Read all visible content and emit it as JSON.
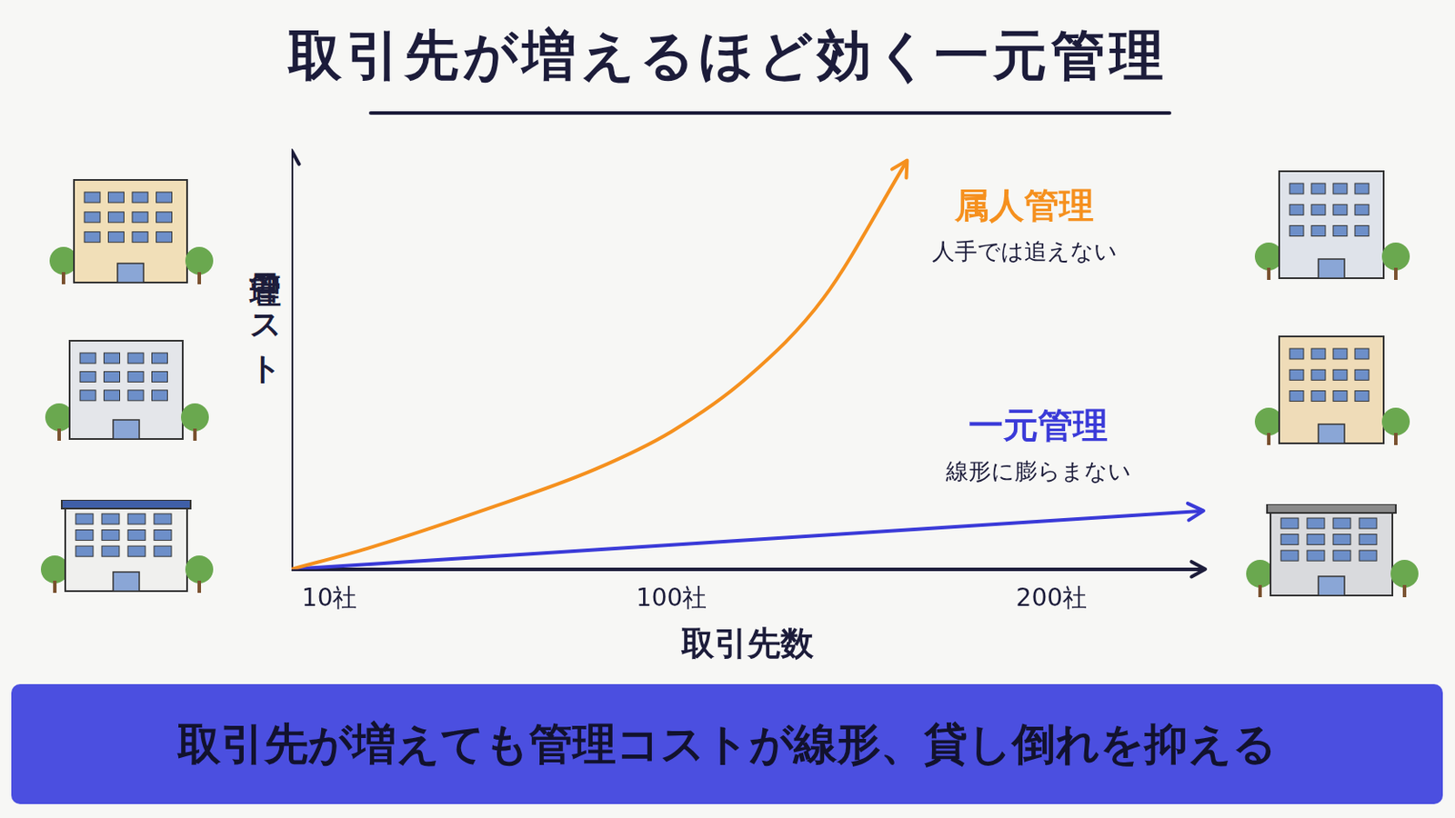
{
  "chart_data": {
    "type": "line",
    "title": "取引先が増えるほど効く一元管理",
    "x_label": "取引先数",
    "y_label": "管理コスト",
    "xlim": [
      0,
      240
    ],
    "xticks": [
      {
        "value": 10,
        "label": "10社"
      },
      {
        "value": 100,
        "label": "100社"
      },
      {
        "value": 200,
        "label": "200社"
      }
    ],
    "ylim": [
      0,
      100
    ],
    "tick_labels": "x",
    "grid": false,
    "series": [
      {
        "name": "属人管理",
        "note": "人手では追えない",
        "color": "#f5901e",
        "x": [
          0,
          20,
          50,
          80,
          100,
          120,
          140,
          162
        ],
        "values": [
          0,
          5,
          14,
          24,
          33,
          46,
          65,
          98
        ]
      },
      {
        "name": "一元管理",
        "note": "線形に膨らまない",
        "color": "#3a3ad8",
        "x": [
          0,
          240
        ],
        "values": [
          0,
          14
        ]
      }
    ],
    "caption": "取引先が増えても管理コストが線形、貸し倒れを抑える"
  }
}
